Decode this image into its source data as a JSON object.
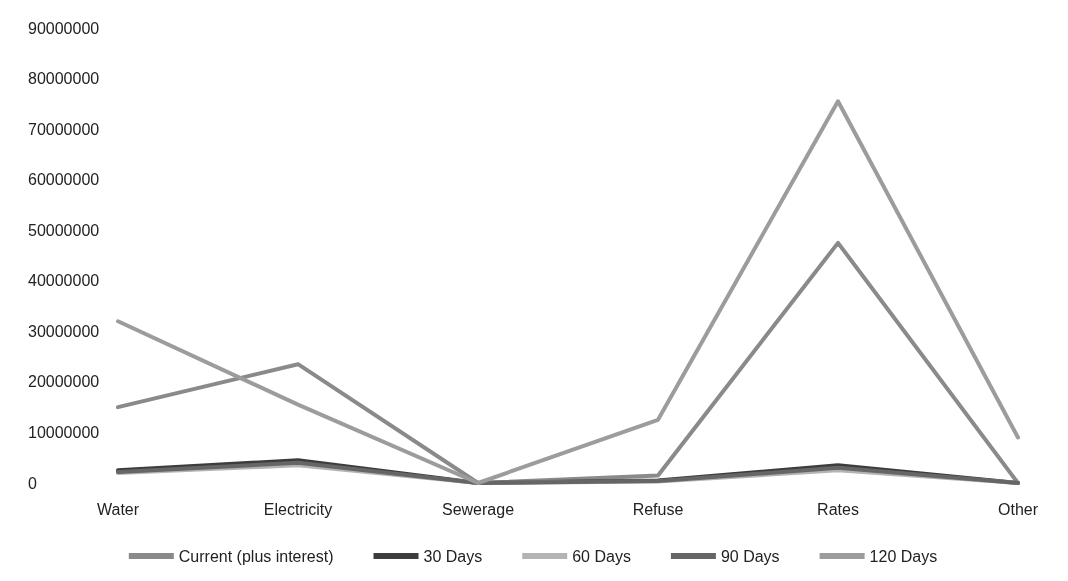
{
  "chart_data": {
    "type": "line",
    "categories": [
      "Water",
      "Electricity",
      "Sewerage",
      "Refuse",
      "Rates",
      "Other"
    ],
    "series": [
      {
        "name": "Current (plus interest)",
        "color": "#8a8a8a",
        "values": [
          15000000,
          23500000,
          0,
          1500000,
          47500000,
          0
        ]
      },
      {
        "name": "30 Days",
        "color": "#3c3c3c",
        "values": [
          2500000,
          4500000,
          0,
          500000,
          3500000,
          0
        ]
      },
      {
        "name": "60 Days",
        "color": "#b4b4b4",
        "values": [
          2000000,
          3500000,
          0,
          300000,
          2500000,
          0
        ]
      },
      {
        "name": "90 Days",
        "color": "#666666",
        "values": [
          2200000,
          4000000,
          0,
          400000,
          3000000,
          0
        ]
      },
      {
        "name": "120 Days",
        "color": "#9c9c9c",
        "values": [
          32000000,
          15500000,
          0,
          12500000,
          75500000,
          9000000
        ]
      }
    ],
    "ylim": [
      0,
      90000000
    ],
    "yticks": [
      0,
      10000000,
      20000000,
      30000000,
      40000000,
      50000000,
      60000000,
      70000000,
      80000000,
      90000000
    ],
    "grid": false,
    "legend": "bottom",
    "marker": "none",
    "line_style": "solid"
  }
}
